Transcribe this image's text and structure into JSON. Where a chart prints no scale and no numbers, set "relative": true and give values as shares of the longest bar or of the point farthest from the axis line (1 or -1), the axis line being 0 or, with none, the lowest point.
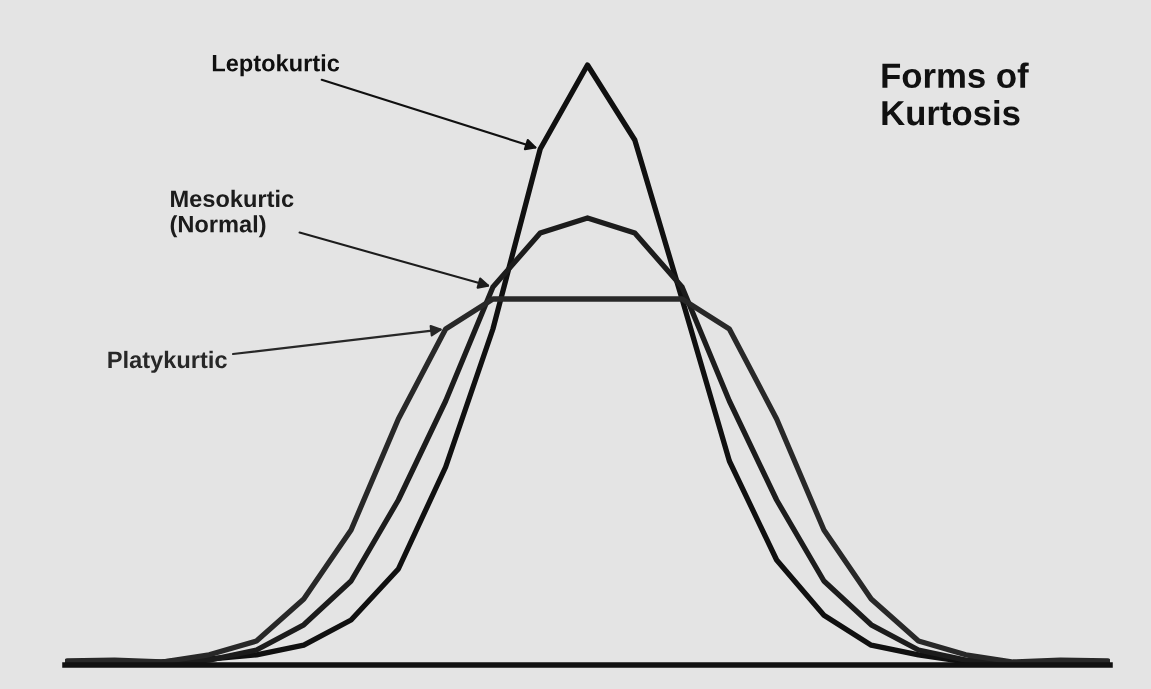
{
  "chart_data": {
    "type": "line",
    "title": "Forms of\nKurtosis",
    "relative": true,
    "legend": false,
    "marker": "none",
    "line_style": "solid",
    "categories": [
      null,
      null,
      null,
      null,
      null,
      null,
      null,
      null,
      null,
      null,
      null,
      null,
      null,
      null,
      null,
      null,
      null,
      null,
      null,
      null,
      null,
      null,
      null
    ],
    "series": [
      {
        "name": "Leptokurtic",
        "color": "#101010",
        "values": [
          0.001,
          0.002,
          0.005,
          0.01,
          0.017,
          0.033,
          0.075,
          0.16,
          0.33,
          0.56,
          0.86,
          1.0,
          0.875,
          0.61,
          0.34,
          0.175,
          0.083,
          0.033,
          0.017,
          0.005,
          0.002,
          0.001,
          0.001
        ]
      },
      {
        "name": "Mesokurtic\n(Normal)",
        "color": "#1c1c1c",
        "values": [
          0.004,
          0.005,
          0.003,
          0.008,
          0.025,
          0.067,
          0.14,
          0.275,
          0.44,
          0.63,
          0.72,
          0.745,
          0.72,
          0.63,
          0.44,
          0.275,
          0.14,
          0.067,
          0.025,
          0.008,
          0.003,
          0.005,
          0.004
        ]
      },
      {
        "name": "Platykurtic",
        "color": "#282828",
        "values": [
          0.007,
          0.008,
          0.005,
          0.017,
          0.04,
          0.11,
          0.225,
          0.41,
          0.56,
          0.61,
          0.61,
          0.61,
          0.61,
          0.61,
          0.56,
          0.41,
          0.225,
          0.11,
          0.04,
          0.017,
          0.005,
          0.008,
          0.007
        ]
      }
    ]
  }
}
